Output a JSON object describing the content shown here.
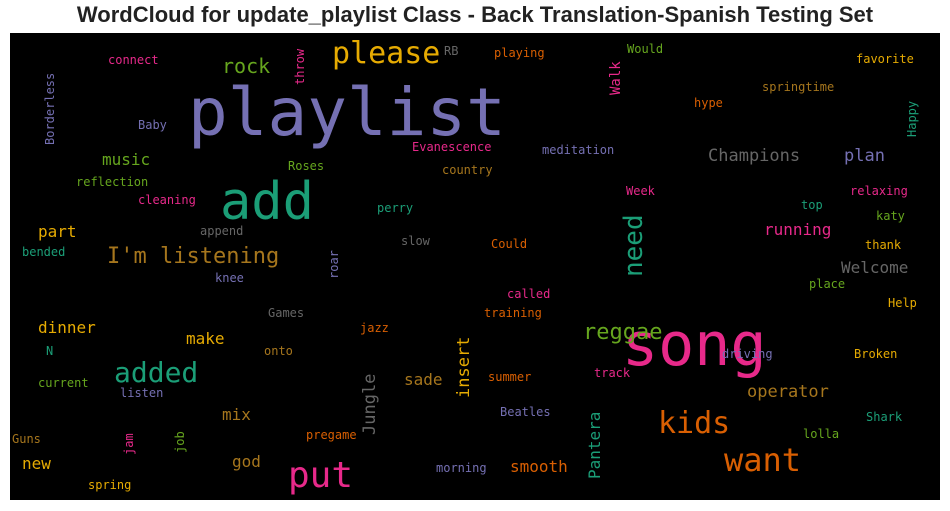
{
  "title": "WordCloud for update_playlist Class - Back Translation-Spanish Testing Set",
  "colors": {
    "background": "#000000",
    "purple": "#7570b3",
    "green": "#1b9e77",
    "pink": "#e7298a",
    "orange": "#d95f02",
    "lime": "#66a61e",
    "gold": "#e6ab02",
    "brown": "#a6761d",
    "gray": "#666666"
  },
  "chart_data": {
    "type": "wordcloud",
    "title": "WordCloud for update_playlist Class - Back Translation-Spanish Testing Set",
    "words": [
      {
        "text": "playlist",
        "color": "purple",
        "weight": 66
      },
      {
        "text": "song",
        "color": "pink",
        "weight": 60
      },
      {
        "text": "add",
        "color": "green",
        "weight": 52
      },
      {
        "text": "put",
        "color": "pink",
        "weight": 36
      },
      {
        "text": "please",
        "color": "gold",
        "weight": 30
      },
      {
        "text": "want",
        "color": "orange",
        "weight": 32
      },
      {
        "text": "kids",
        "color": "orange",
        "weight": 30
      },
      {
        "text": "added",
        "color": "green",
        "weight": 28
      },
      {
        "text": "need",
        "color": "green",
        "weight": 26
      },
      {
        "text": "reggae",
        "color": "lime",
        "weight": 22
      },
      {
        "text": "I'm listening",
        "color": "brown",
        "weight": 22
      },
      {
        "text": "rock",
        "color": "lime",
        "weight": 20
      },
      {
        "text": "Champions",
        "color": "gray",
        "weight": 17
      },
      {
        "text": "Jungle",
        "color": "gray",
        "weight": 17
      },
      {
        "text": "insert",
        "color": "gold",
        "weight": 17
      },
      {
        "text": "operator",
        "color": "brown",
        "weight": 17
      },
      {
        "text": "plan",
        "color": "purple",
        "weight": 17
      },
      {
        "text": "Welcome",
        "color": "gray",
        "weight": 16
      },
      {
        "text": "smooth",
        "color": "orange",
        "weight": 16
      },
      {
        "text": "Pantera",
        "color": "green",
        "weight": 16
      },
      {
        "text": "music",
        "color": "lime",
        "weight": 16
      },
      {
        "text": "running",
        "color": "pink",
        "weight": 16
      },
      {
        "text": "part",
        "color": "gold",
        "weight": 16
      },
      {
        "text": "dinner",
        "color": "gold",
        "weight": 16
      },
      {
        "text": "make",
        "color": "gold",
        "weight": 16
      },
      {
        "text": "sade",
        "color": "brown",
        "weight": 16
      },
      {
        "text": "mix",
        "color": "brown",
        "weight": 16
      },
      {
        "text": "god",
        "color": "brown",
        "weight": 16
      },
      {
        "text": "new",
        "color": "gold",
        "weight": 16
      },
      {
        "text": "Walk",
        "color": "pink",
        "weight": 14
      },
      {
        "text": "throw",
        "color": "pink",
        "weight": 12
      },
      {
        "text": "Borderless",
        "color": "purple",
        "weight": 12
      },
      {
        "text": "Happy",
        "color": "green",
        "weight": 12
      },
      {
        "text": "Evanescence",
        "color": "pink",
        "weight": 12
      },
      {
        "text": "meditation",
        "color": "purple",
        "weight": 12
      },
      {
        "text": "springtime",
        "color": "brown",
        "weight": 12
      },
      {
        "text": "favorite",
        "color": "gold",
        "weight": 12
      },
      {
        "text": "playing",
        "color": "orange",
        "weight": 12
      },
      {
        "text": "Would",
        "color": "lime",
        "weight": 12
      },
      {
        "text": "connect",
        "color": "pink",
        "weight": 12
      },
      {
        "text": "RB",
        "color": "gray",
        "weight": 12
      },
      {
        "text": "hype",
        "color": "orange",
        "weight": 12
      },
      {
        "text": "Baby",
        "color": "purple",
        "weight": 12
      },
      {
        "text": "Roses",
        "color": "lime",
        "weight": 12
      },
      {
        "text": "country",
        "color": "brown",
        "weight": 12
      },
      {
        "text": "reflection",
        "color": "lime",
        "weight": 12
      },
      {
        "text": "cleaning",
        "color": "pink",
        "weight": 12
      },
      {
        "text": "perry",
        "color": "green",
        "weight": 12
      },
      {
        "text": "Week",
        "color": "pink",
        "weight": 12
      },
      {
        "text": "relaxing",
        "color": "pink",
        "weight": 12
      },
      {
        "text": "top",
        "color": "green",
        "weight": 12
      },
      {
        "text": "katy",
        "color": "lime",
        "weight": 12
      },
      {
        "text": "append",
        "color": "gray",
        "weight": 12
      },
      {
        "text": "bended",
        "color": "green",
        "weight": 12
      },
      {
        "text": "slow",
        "color": "gray",
        "weight": 12
      },
      {
        "text": "Could",
        "color": "orange",
        "weight": 12
      },
      {
        "text": "thank",
        "color": "gold",
        "weight": 12
      },
      {
        "text": "knee",
        "color": "purple",
        "weight": 12
      },
      {
        "text": "roar",
        "color": "purple",
        "weight": 12
      },
      {
        "text": "called",
        "color": "pink",
        "weight": 12
      },
      {
        "text": "place",
        "color": "lime",
        "weight": 12
      },
      {
        "text": "Help",
        "color": "gold",
        "weight": 12
      },
      {
        "text": "Games",
        "color": "gray",
        "weight": 12
      },
      {
        "text": "training",
        "color": "orange",
        "weight": 12
      },
      {
        "text": "jazz",
        "color": "orange",
        "weight": 12
      },
      {
        "text": "onto",
        "color": "brown",
        "weight": 12
      },
      {
        "text": "N",
        "color": "green",
        "weight": 12
      },
      {
        "text": "driving",
        "color": "purple",
        "weight": 12
      },
      {
        "text": "Broken",
        "color": "gold",
        "weight": 12
      },
      {
        "text": "current",
        "color": "lime",
        "weight": 12
      },
      {
        "text": "listen",
        "color": "purple",
        "weight": 12
      },
      {
        "text": "track",
        "color": "pink",
        "weight": 12
      },
      {
        "text": "summer",
        "color": "orange",
        "weight": 12
      },
      {
        "text": "Beatles",
        "color": "purple",
        "weight": 12
      },
      {
        "text": "Shark",
        "color": "green",
        "weight": 12
      },
      {
        "text": "Guns",
        "color": "brown",
        "weight": 12
      },
      {
        "text": "jam",
        "color": "pink",
        "weight": 12
      },
      {
        "text": "job",
        "color": "lime",
        "weight": 12
      },
      {
        "text": "pregame",
        "color": "orange",
        "weight": 12
      },
      {
        "text": "lolla",
        "color": "lime",
        "weight": 12
      },
      {
        "text": "morning",
        "color": "purple",
        "weight": 12
      },
      {
        "text": "spring",
        "color": "gold",
        "weight": 12
      }
    ]
  }
}
